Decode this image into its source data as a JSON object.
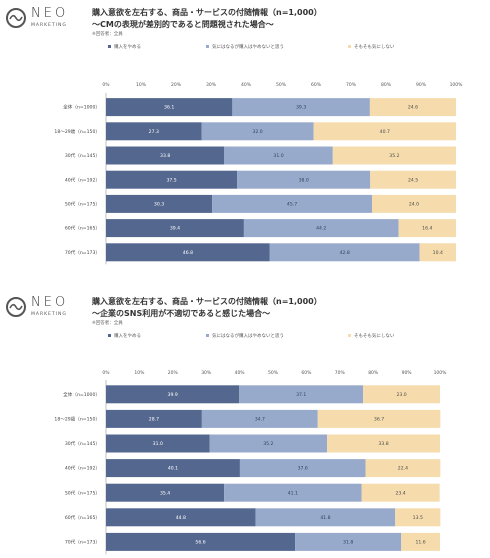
{
  "brand": {
    "name": "NEO",
    "sub": "MARKETING"
  },
  "colors": {
    "series1": "#54688f",
    "series2": "#98aacb",
    "series3": "#f6dcad"
  },
  "chart_data": [
    {
      "type": "bar",
      "orientation": "horizontal-stacked",
      "title": "購入意欲を左右する、商品・サービスの付随情報（n=1,000）",
      "subtitle": "〜CMの表現が差別的であると問題視された場合〜",
      "note": "※回答者：全員",
      "xlim": [
        0,
        100
      ],
      "xticks": [
        "0%",
        "10%",
        "20%",
        "30%",
        "40%",
        "50%",
        "60%",
        "70%",
        "80%",
        "90%",
        "100%"
      ],
      "categories": [
        "全体（n=1000）",
        "18〜29歳（n=150）",
        "30代（n=145）",
        "40代（n=192）",
        "50代（n=175）",
        "60代（n=165）",
        "70代（n=173）"
      ],
      "series": [
        {
          "name": "購入をやめる",
          "values": [
            36.1,
            27.3,
            33.8,
            37.5,
            30.3,
            39.4,
            46.8
          ]
        },
        {
          "name": "気にはなるが購入はやめないと思う",
          "values": [
            39.3,
            32.0,
            31.0,
            38.0,
            45.7,
            44.2,
            42.8
          ]
        },
        {
          "name": "そもそも気にしない",
          "values": [
            24.6,
            40.7,
            35.2,
            24.5,
            24.0,
            16.4,
            10.4
          ]
        }
      ]
    },
    {
      "type": "bar",
      "orientation": "horizontal-stacked",
      "title": "購入意欲を左右する、商品・サービスの付随情報（n=1,000）",
      "subtitle": "〜企業のSNS利用が不適切であると感じた場合〜",
      "note": "※回答者：全員",
      "xlim": [
        0,
        100
      ],
      "xticks": [
        "0%",
        "10%",
        "20%",
        "30%",
        "40%",
        "50%",
        "60%",
        "70%",
        "80%",
        "90%",
        "100%"
      ],
      "categories": [
        "全体（n=1000）",
        "18〜29歳（n=150）",
        "30代（n=145）",
        "40代（n=192）",
        "50代（n=175）",
        "60代（n=165）",
        "70代（n=173）"
      ],
      "series": [
        {
          "name": "購入をやめる",
          "values": [
            39.9,
            28.7,
            31.0,
            40.1,
            35.4,
            44.8,
            56.6
          ]
        },
        {
          "name": "気にはなるが購入はやめないと思う",
          "values": [
            37.1,
            34.7,
            35.2,
            37.6,
            41.1,
            41.8,
            31.8
          ]
        },
        {
          "name": "そもそも気にしない",
          "values": [
            23.0,
            36.7,
            33.8,
            22.4,
            23.4,
            13.5,
            11.6
          ]
        }
      ]
    }
  ]
}
